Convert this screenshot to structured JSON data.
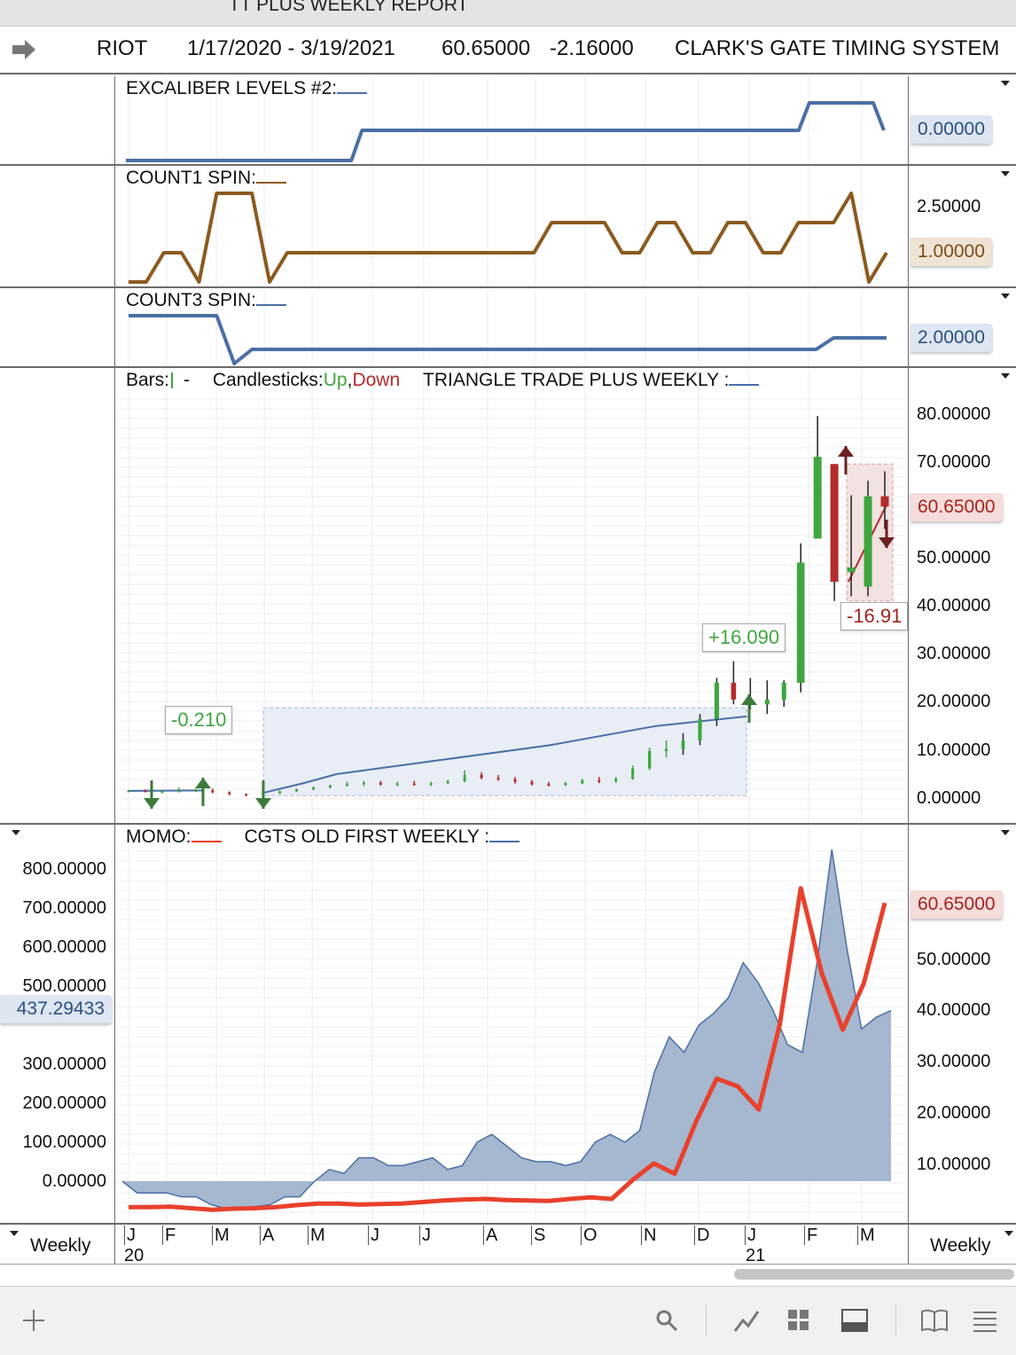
{
  "window_title": "TT PLUS WEEKLY REPORT",
  "header": {
    "symbol": "RIOT",
    "date_range": "1/17/2020 - 3/19/2021",
    "last": "60.65000",
    "change": "-2.16000",
    "system": "CLARK'S GATE TIMING SYSTEM"
  },
  "panels": {
    "excaliber": {
      "title": "EXCALIBER LEVELS #2:",
      "badge": "0.00000",
      "color": "#4a6fa5"
    },
    "count1": {
      "title": "COUNT1 SPIN:",
      "badge": "1.00000",
      "tick": "2.50000",
      "color": "#8b5a1e"
    },
    "count3": {
      "title": "COUNT3 SPIN:",
      "badge": "2.00000",
      "color": "#4a6fa5"
    },
    "price": {
      "bars_label": "Bars:",
      "candles_label": "Candlesticks:",
      "up_label": "Up",
      "comma": ",",
      "down_label": "Down",
      "study_label": "TRIANGLE TRADE PLUS WEEKLY :",
      "badge": "60.65000",
      "ticks": [
        "80.00000",
        "70.00000",
        "50.00000",
        "40.00000",
        "30.00000",
        "20.00000",
        "10.00000",
        "0.00000"
      ],
      "annotations": [
        "-0.210",
        "+16.090",
        "-16.91"
      ],
      "up_color": "#3fa63f",
      "down_color": "#b52a2a"
    },
    "momo": {
      "momo_label": "MOMO:",
      "cgts_label": "CGTS OLD FIRST WEEKLY :",
      "left_badge": "437.29433",
      "right_badge": "60.65000",
      "left_ticks": [
        "800.00000",
        "700.00000",
        "600.00000",
        "500.00000",
        "300.00000",
        "200.00000",
        "100.00000",
        "0.00000"
      ],
      "right_ticks": [
        "50.00000",
        "40.00000",
        "30.00000",
        "20.00000",
        "10.00000"
      ]
    }
  },
  "x_axis": {
    "months": [
      "J",
      "F",
      "M",
      "A",
      "M",
      "J",
      "J",
      "A",
      "S",
      "O",
      "N",
      "D",
      "J",
      "F",
      "M"
    ],
    "year_labels": [
      "20",
      "21"
    ],
    "timeframe_left": "Weekly",
    "timeframe_right": "Weekly"
  },
  "chart_data": [
    {
      "type": "line",
      "title": "EXCALIBER LEVELS #2",
      "x": [
        "2020-01-17",
        "2020-03-27",
        "2020-05-29",
        "2021-01-01",
        "2021-02-05",
        "2021-03-19"
      ],
      "series": [
        {
          "values": [
            -1,
            -1,
            0,
            0,
            1,
            0
          ]
        }
      ]
    },
    {
      "type": "line",
      "title": "COUNT1 SPIN",
      "series": [
        {
          "values": [
            0,
            0,
            1,
            1,
            0,
            3,
            3,
            3,
            0,
            1,
            1,
            1,
            1,
            1,
            1,
            1,
            1,
            1,
            1,
            1,
            1,
            1,
            1,
            1,
            2,
            2,
            2,
            2,
            1,
            1,
            2,
            2,
            1,
            1,
            2,
            2,
            1,
            1,
            2,
            2,
            2,
            3,
            0,
            1
          ]
        }
      ]
    },
    {
      "type": "line",
      "title": "COUNT3 SPIN",
      "series": [
        {
          "values": [
            3,
            3,
            3,
            3,
            3,
            3,
            0,
            1,
            1,
            1,
            1,
            1,
            1,
            1,
            1,
            1,
            1,
            1,
            1,
            1,
            1,
            1,
            1,
            1,
            1,
            1,
            1,
            1,
            1,
            1,
            1,
            1,
            1,
            1,
            1,
            1,
            1,
            1,
            1,
            1,
            2,
            2,
            2,
            2
          ]
        }
      ]
    },
    {
      "type": "bar",
      "title": "TRIANGLE TRADE PLUS WEEKLY",
      "ylim": [
        0,
        82
      ],
      "candles": [
        {
          "o": 1.4,
          "h": 1.7,
          "l": 1.2,
          "c": 1.5
        },
        {
          "o": 1.5,
          "h": 1.8,
          "l": 1.2,
          "c": 1.3
        },
        {
          "o": 1.3,
          "h": 1.6,
          "l": 1.0,
          "c": 1.4
        },
        {
          "o": 1.4,
          "h": 2.2,
          "l": 1.2,
          "c": 1.5
        },
        {
          "o": 1.5,
          "h": 2.0,
          "l": 1.3,
          "c": 1.6
        },
        {
          "o": 1.6,
          "h": 2.0,
          "l": 1.0,
          "c": 1.2
        },
        {
          "o": 1.2,
          "h": 1.4,
          "l": 0.6,
          "c": 0.8
        },
        {
          "o": 0.8,
          "h": 1.0,
          "l": 0.4,
          "c": 0.7
        },
        {
          "o": 0.7,
          "h": 1.2,
          "l": 0.5,
          "c": 1.0
        },
        {
          "o": 1.0,
          "h": 1.6,
          "l": 0.9,
          "c": 1.4
        },
        {
          "o": 1.4,
          "h": 2.0,
          "l": 1.3,
          "c": 1.8
        },
        {
          "o": 1.8,
          "h": 2.4,
          "l": 1.6,
          "c": 2.2
        },
        {
          "o": 2.2,
          "h": 2.8,
          "l": 2.0,
          "c": 2.6
        },
        {
          "o": 2.6,
          "h": 3.4,
          "l": 2.4,
          "c": 2.9
        },
        {
          "o": 2.9,
          "h": 3.6,
          "l": 2.5,
          "c": 3.2
        },
        {
          "o": 3.2,
          "h": 3.6,
          "l": 2.6,
          "c": 2.8
        },
        {
          "o": 2.8,
          "h": 3.4,
          "l": 2.5,
          "c": 3.0
        },
        {
          "o": 3.0,
          "h": 3.6,
          "l": 2.6,
          "c": 2.8
        },
        {
          "o": 2.8,
          "h": 3.4,
          "l": 2.5,
          "c": 3.1
        },
        {
          "o": 3.1,
          "h": 3.8,
          "l": 2.9,
          "c": 3.5
        },
        {
          "o": 3.5,
          "h": 5.8,
          "l": 3.3,
          "c": 4.8
        },
        {
          "o": 4.8,
          "h": 5.4,
          "l": 3.9,
          "c": 4.2
        },
        {
          "o": 4.2,
          "h": 4.8,
          "l": 3.6,
          "c": 3.9
        },
        {
          "o": 3.9,
          "h": 4.4,
          "l": 3.0,
          "c": 3.4
        },
        {
          "o": 3.4,
          "h": 3.8,
          "l": 2.6,
          "c": 2.9
        },
        {
          "o": 2.9,
          "h": 3.4,
          "l": 2.4,
          "c": 2.7
        },
        {
          "o": 2.7,
          "h": 3.4,
          "l": 2.5,
          "c": 3.1
        },
        {
          "o": 3.1,
          "h": 4.0,
          "l": 2.9,
          "c": 3.7
        },
        {
          "o": 3.7,
          "h": 4.4,
          "l": 3.1,
          "c": 3.5
        },
        {
          "o": 3.5,
          "h": 4.4,
          "l": 3.2,
          "c": 4.0
        },
        {
          "o": 4.0,
          "h": 6.8,
          "l": 3.8,
          "c": 6.2
        },
        {
          "o": 6.2,
          "h": 10.5,
          "l": 5.8,
          "c": 9.8
        },
        {
          "o": 9.8,
          "h": 12.0,
          "l": 8.5,
          "c": 10.2
        },
        {
          "o": 10.2,
          "h": 13.5,
          "l": 9.0,
          "c": 12.0
        },
        {
          "o": 12.0,
          "h": 17.5,
          "l": 11.0,
          "c": 16.5
        },
        {
          "o": 16.5,
          "h": 25.0,
          "l": 15.0,
          "c": 24.0
        },
        {
          "o": 24.0,
          "h": 28.5,
          "l": 19.5,
          "c": 20.5
        },
        {
          "o": 20.5,
          "h": 25.0,
          "l": 18.5,
          "c": 19.5
        },
        {
          "o": 19.5,
          "h": 24.5,
          "l": 17.5,
          "c": 20.5
        },
        {
          "o": 20.5,
          "h": 24.5,
          "l": 19.0,
          "c": 24.0
        },
        {
          "o": 24.0,
          "h": 53.0,
          "l": 22.0,
          "c": 49.0
        },
        {
          "o": 54.0,
          "h": 79.5,
          "l": 54.0,
          "c": 71.0
        },
        {
          "o": 69.5,
          "h": 69.5,
          "l": 41.0,
          "c": 45.0
        },
        {
          "o": 47.0,
          "h": 63.0,
          "l": 42.0,
          "c": 48.0
        },
        {
          "o": 44.0,
          "h": 66.0,
          "l": 42.0,
          "c": 62.8
        },
        {
          "o": 62.8,
          "h": 68.0,
          "l": 56.0,
          "c": 60.65
        }
      ]
    },
    {
      "type": "area",
      "title": "CGTS OLD FIRST WEEKLY",
      "ylim": [
        -100,
        850
      ],
      "series": [
        {
          "values": [
            0,
            -30,
            -30,
            -30,
            -40,
            -40,
            -60,
            -70,
            -70,
            -65,
            -60,
            -40,
            -40,
            0,
            30,
            20,
            60,
            60,
            40,
            40,
            50,
            60,
            30,
            40,
            100,
            120,
            90,
            60,
            50,
            50,
            40,
            50,
            100,
            120,
            100,
            130,
            280,
            370,
            330,
            400,
            430,
            470,
            560,
            510,
            440,
            350,
            330,
            560,
            850,
            600,
            390,
            420,
            437.29433
          ]
        }
      ]
    },
    {
      "type": "line",
      "title": "MOMO",
      "ylim": [
        0,
        67
      ],
      "series": [
        {
          "values": [
            1.5,
            1.5,
            1.6,
            1.3,
            1.0,
            1.2,
            1.3,
            1.5,
            1.9,
            2.2,
            2.2,
            2.0,
            2.1,
            2.2,
            2.5,
            2.8,
            3.0,
            3.1,
            2.9,
            2.8,
            2.7,
            3.1,
            3.4,
            3.1,
            6.8,
            10.0,
            8.0,
            18.0,
            26.5,
            25.0,
            20.5,
            37.0,
            63.5,
            47.0,
            36.0,
            45.0,
            60.65
          ]
        }
      ]
    }
  ]
}
